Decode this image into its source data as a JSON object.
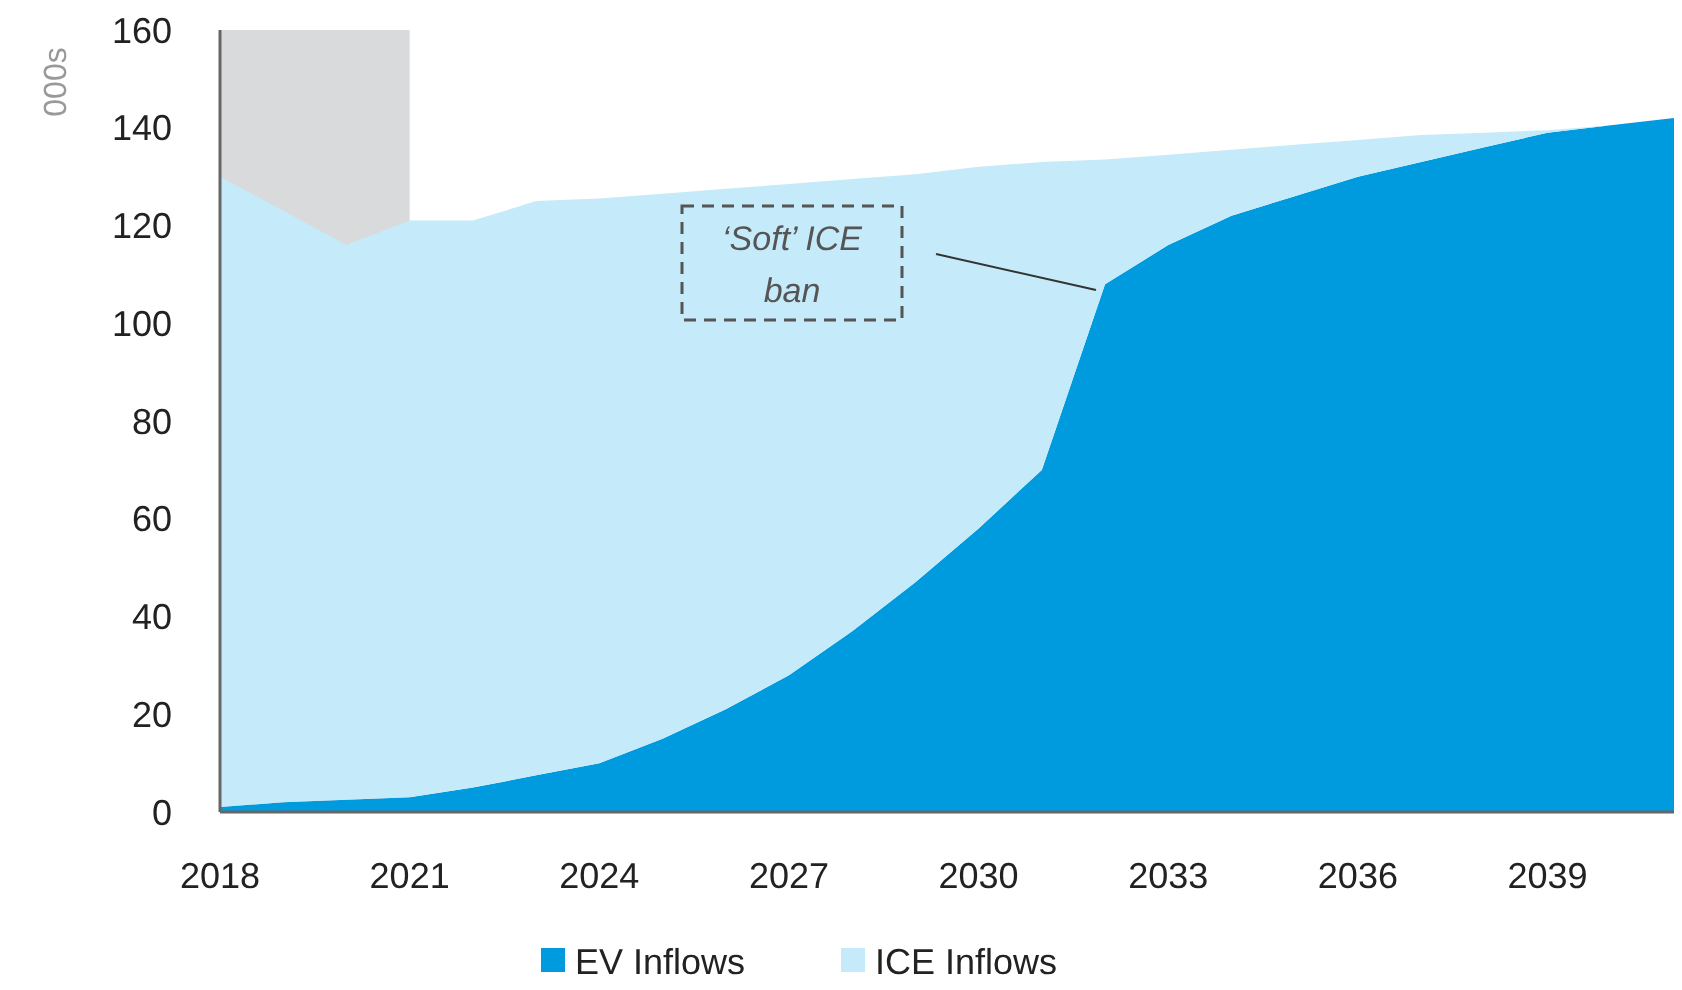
{
  "chart_data": {
    "type": "area",
    "stacked": true,
    "ylabel": "000s",
    "x": [
      2018,
      2019,
      2020,
      2021,
      2022,
      2023,
      2024,
      2025,
      2026,
      2027,
      2028,
      2029,
      2030,
      2031,
      2032,
      2033,
      2034,
      2035,
      2036,
      2037,
      2038,
      2039,
      2040,
      2041
    ],
    "series": [
      {
        "name": "EV Inflows",
        "color": "#009ade",
        "values": [
          1,
          2,
          2.5,
          3,
          5,
          7.5,
          10,
          15,
          21,
          28,
          37,
          47,
          58,
          70,
          108,
          116,
          122,
          126,
          130,
          133,
          136,
          139,
          140.5,
          142
        ]
      },
      {
        "name": "ICE Inflows",
        "color": "#c5ebfa",
        "values": [
          129,
          121,
          113.5,
          118,
          116,
          117.5,
          115.5,
          111.5,
          106.5,
          100.5,
          92.5,
          83.5,
          74,
          63,
          25.5,
          18.5,
          13.5,
          10.5,
          7.5,
          5.5,
          3,
          0.5,
          0,
          0
        ]
      }
    ],
    "xlim": [
      2018,
      2041
    ],
    "xticks": [
      2018,
      2021,
      2024,
      2027,
      2030,
      2033,
      2036,
      2039
    ],
    "ylim": [
      0,
      160
    ],
    "yticks": [
      0,
      20,
      40,
      60,
      80,
      100,
      120,
      140,
      160
    ],
    "bands": [
      {
        "axis": "x",
        "from": 2018,
        "to": 2021,
        "color": "#d9dadc"
      }
    ],
    "annotations": [
      "‘Soft’ ICE ban"
    ],
    "legend": "bottom"
  }
}
